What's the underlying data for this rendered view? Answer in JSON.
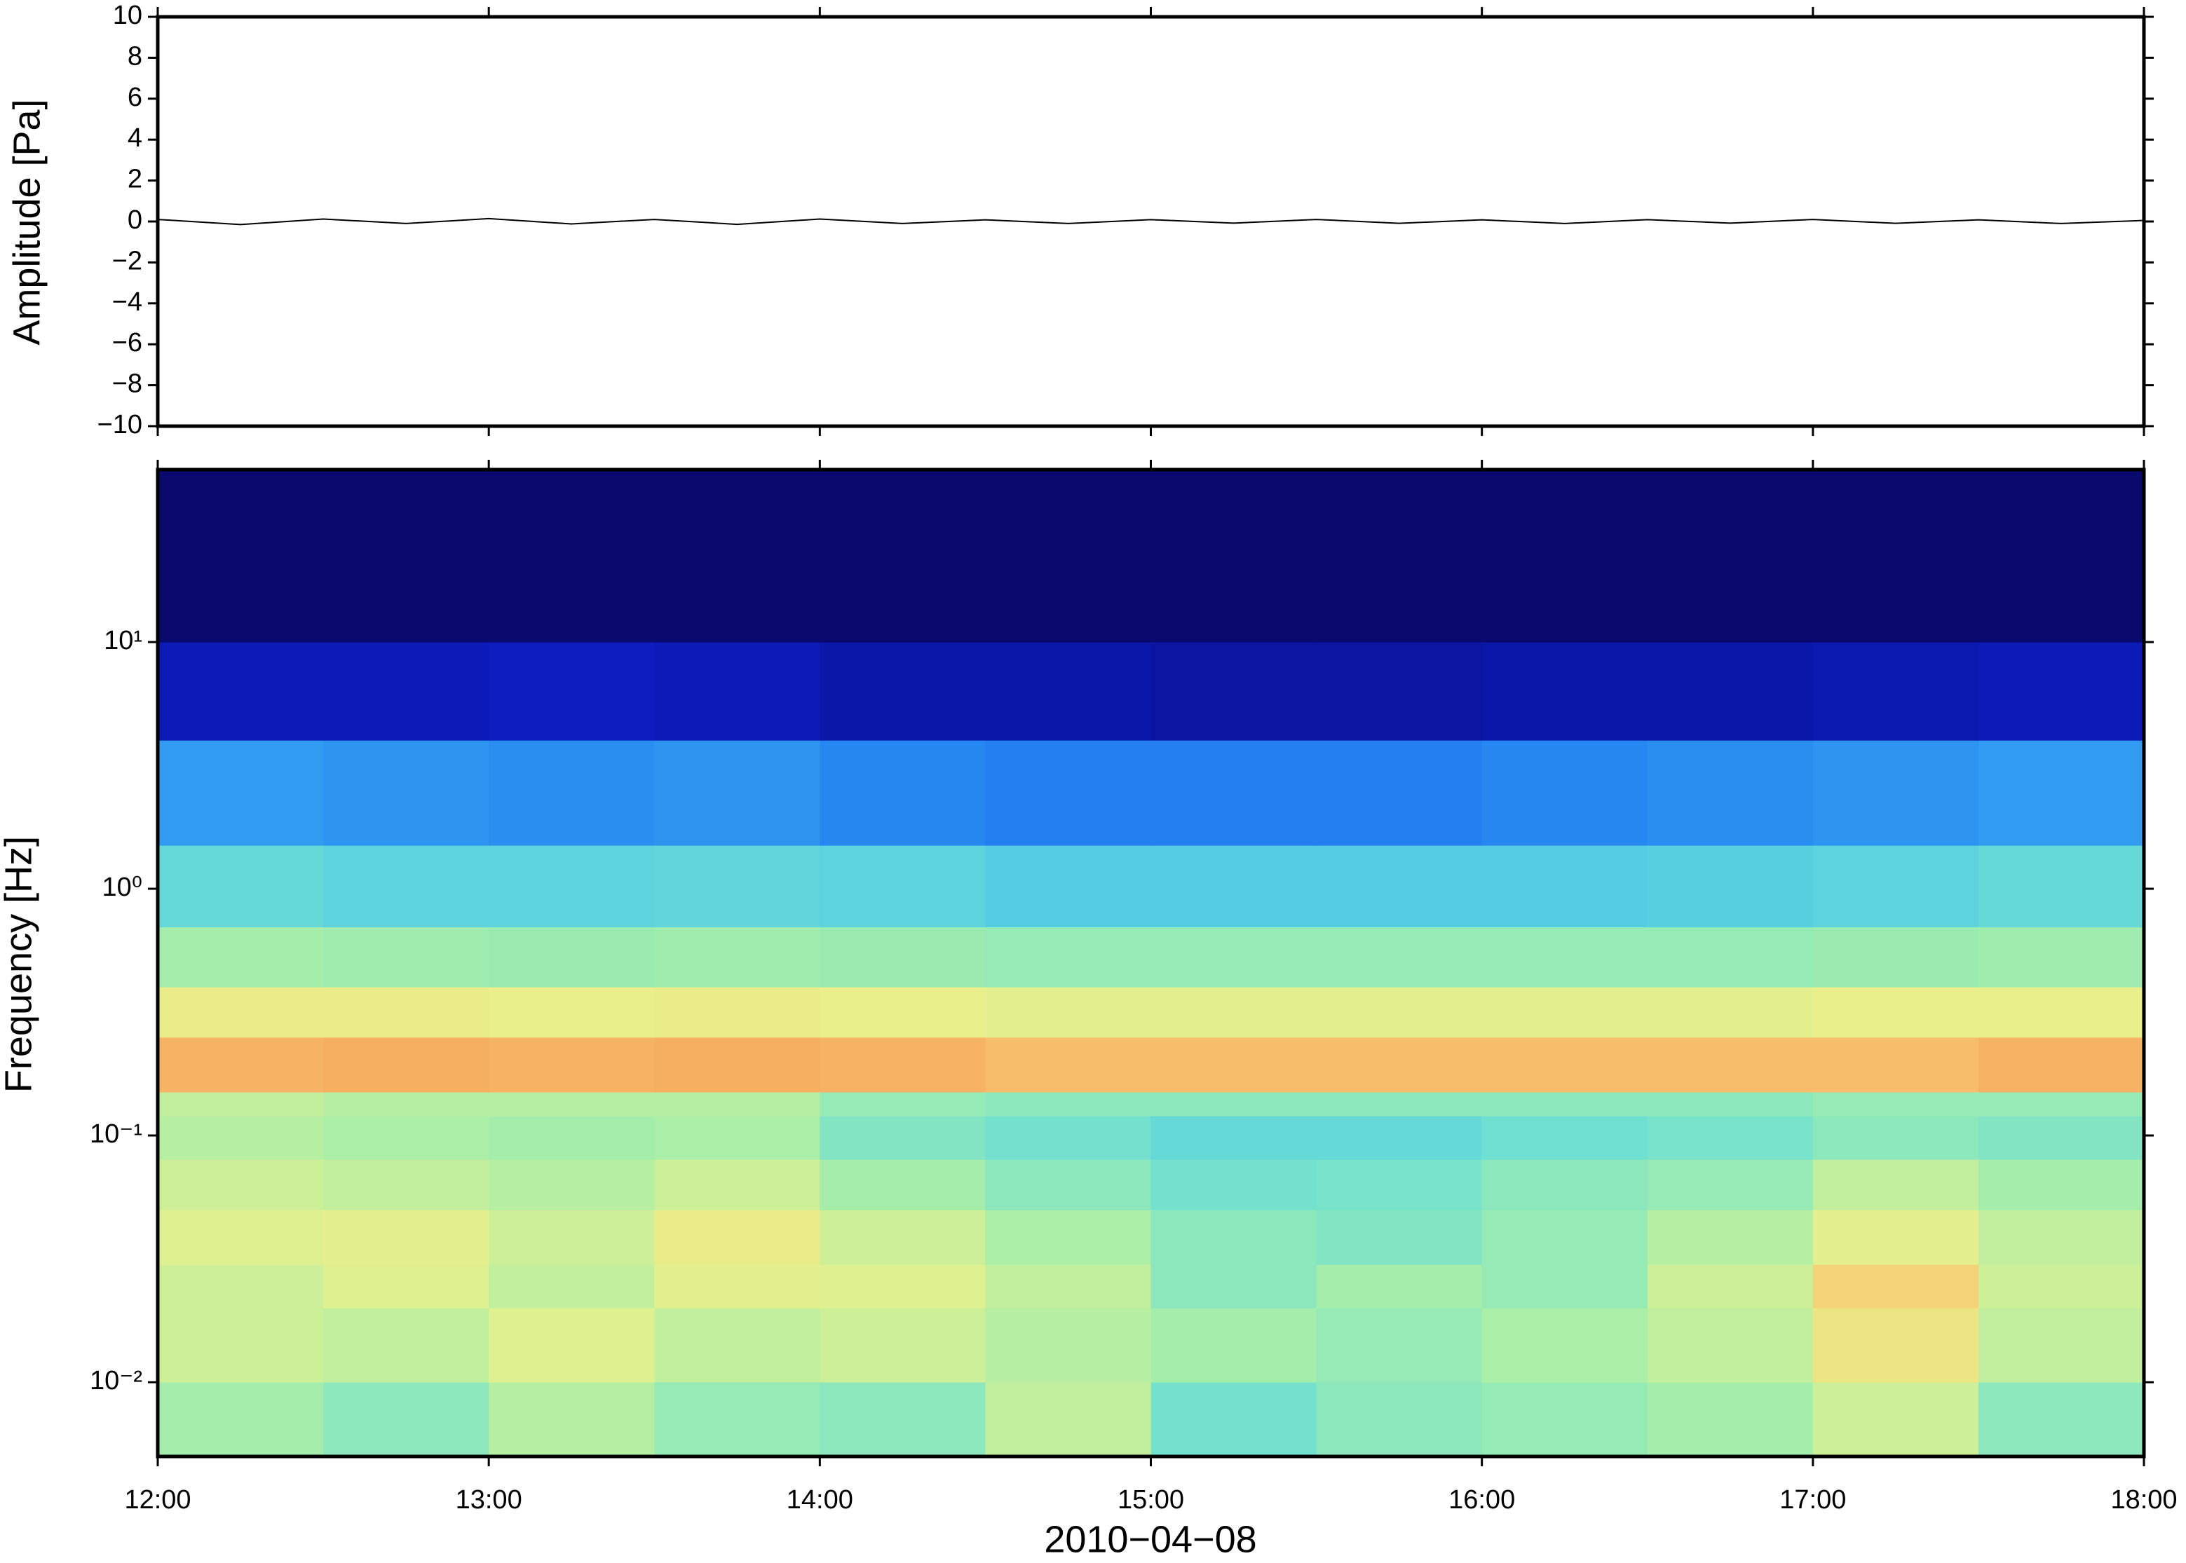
{
  "chart_data": [
    {
      "type": "line",
      "y_label": "Amplitude [Pa]",
      "xlim": [
        12,
        18
      ],
      "ylim": [
        -10,
        10
      ],
      "yticks": [
        {
          "value": -10,
          "label": "−10"
        },
        {
          "value": -8,
          "label": "−8"
        },
        {
          "value": -6,
          "label": "−6"
        },
        {
          "value": -4,
          "label": "−4"
        },
        {
          "value": -2,
          "label": "−2"
        },
        0,
        2,
        4,
        6,
        8,
        10
      ],
      "color": "#000000",
      "x": [
        12,
        12.25,
        12.5,
        12.75,
        13,
        13.25,
        13.5,
        13.75,
        14,
        14.25,
        14.5,
        14.75,
        15,
        15.25,
        15.5,
        15.75,
        16,
        16.25,
        16.5,
        16.75,
        17,
        17.25,
        17.5,
        17.75,
        18
      ],
      "values": [
        0.1,
        -0.15,
        0.12,
        -0.1,
        0.14,
        -0.12,
        0.1,
        -0.14,
        0.12,
        -0.1,
        0.08,
        -0.1,
        0.09,
        -0.08,
        0.1,
        -0.09,
        0.08,
        -0.1,
        0.09,
        -0.08,
        0.1,
        -0.09,
        0.08,
        -0.1,
        0.05
      ]
    },
    {
      "type": "heatmap",
      "y_label": "Frequency [Hz]",
      "x_label": "2010−04−08",
      "xlim": [
        12,
        18
      ],
      "xticks": [
        {
          "value": 12,
          "label": "12:00"
        },
        {
          "value": 13,
          "label": "13:00"
        },
        {
          "value": 14,
          "label": "14:00"
        },
        {
          "value": 15,
          "label": "15:00"
        },
        {
          "value": 16,
          "label": "16:00"
        },
        {
          "value": 17,
          "label": "17:00"
        },
        {
          "value": 18,
          "label": "18:00"
        }
      ],
      "ylim": [
        0.005,
        50
      ],
      "log_y": true,
      "yticks": [
        {
          "value": 0.01,
          "label": "10⁻²"
        },
        {
          "value": 0.1,
          "label": "10⁻¹"
        },
        {
          "value": 1,
          "label": "10⁰"
        },
        {
          "value": 10,
          "label": "10¹"
        }
      ],
      "zlim": [
        0,
        1
      ],
      "colormap": [
        "#0a0a6e",
        "#0c1cc0",
        "#1f74f0",
        "#3fbff0",
        "#70e0d0",
        "#a8eea8",
        "#e8f08c",
        "#f8c870",
        "#f49050",
        "#e05030"
      ],
      "x_edges": [
        12,
        12.5,
        13,
        13.5,
        14,
        14.5,
        15,
        15.5,
        16,
        16.5,
        17,
        17.5,
        18
      ],
      "y_edges": [
        0.005,
        0.01,
        0.02,
        0.03,
        0.05,
        0.08,
        0.12,
        0.15,
        0.25,
        0.4,
        0.7,
        1.5,
        4,
        10,
        50
      ],
      "z": [
        [
          0.55,
          0.5,
          0.58,
          0.52,
          0.5,
          0.6,
          0.45,
          0.5,
          0.52,
          0.55,
          0.62,
          0.5
        ],
        [
          0.62,
          0.6,
          0.65,
          0.6,
          0.62,
          0.58,
          0.55,
          0.52,
          0.56,
          0.6,
          0.7,
          0.6
        ],
        [
          0.62,
          0.65,
          0.6,
          0.66,
          0.65,
          0.6,
          0.5,
          0.55,
          0.52,
          0.62,
          0.75,
          0.62
        ],
        [
          0.65,
          0.66,
          0.62,
          0.68,
          0.62,
          0.56,
          0.5,
          0.48,
          0.52,
          0.58,
          0.66,
          0.6
        ],
        [
          0.62,
          0.6,
          0.58,
          0.62,
          0.55,
          0.5,
          0.45,
          0.46,
          0.5,
          0.52,
          0.6,
          0.55
        ],
        [
          0.58,
          0.56,
          0.55,
          0.56,
          0.48,
          0.45,
          0.42,
          0.42,
          0.44,
          0.46,
          0.5,
          0.48
        ],
        [
          0.6,
          0.58,
          0.58,
          0.58,
          0.52,
          0.5,
          0.5,
          0.5,
          0.5,
          0.5,
          0.52,
          0.52
        ],
        [
          0.82,
          0.83,
          0.82,
          0.83,
          0.82,
          0.8,
          0.8,
          0.8,
          0.8,
          0.8,
          0.8,
          0.82
        ],
        [
          0.68,
          0.68,
          0.67,
          0.68,
          0.67,
          0.66,
          0.66,
          0.66,
          0.66,
          0.66,
          0.67,
          0.67
        ],
        [
          0.55,
          0.54,
          0.53,
          0.54,
          0.53,
          0.52,
          0.52,
          0.52,
          0.52,
          0.52,
          0.53,
          0.54
        ],
        [
          0.42,
          0.4,
          0.4,
          0.41,
          0.4,
          0.38,
          0.38,
          0.38,
          0.38,
          0.39,
          0.4,
          0.42
        ],
        [
          0.28,
          0.27,
          0.26,
          0.27,
          0.25,
          0.24,
          0.24,
          0.24,
          0.25,
          0.26,
          0.27,
          0.28
        ],
        [
          0.1,
          0.1,
          0.11,
          0.1,
          0.08,
          0.08,
          0.07,
          0.07,
          0.08,
          0.08,
          0.09,
          0.1
        ],
        [
          0,
          0,
          0,
          0,
          0,
          0,
          0,
          0,
          0,
          0,
          0,
          0
        ]
      ]
    }
  ]
}
